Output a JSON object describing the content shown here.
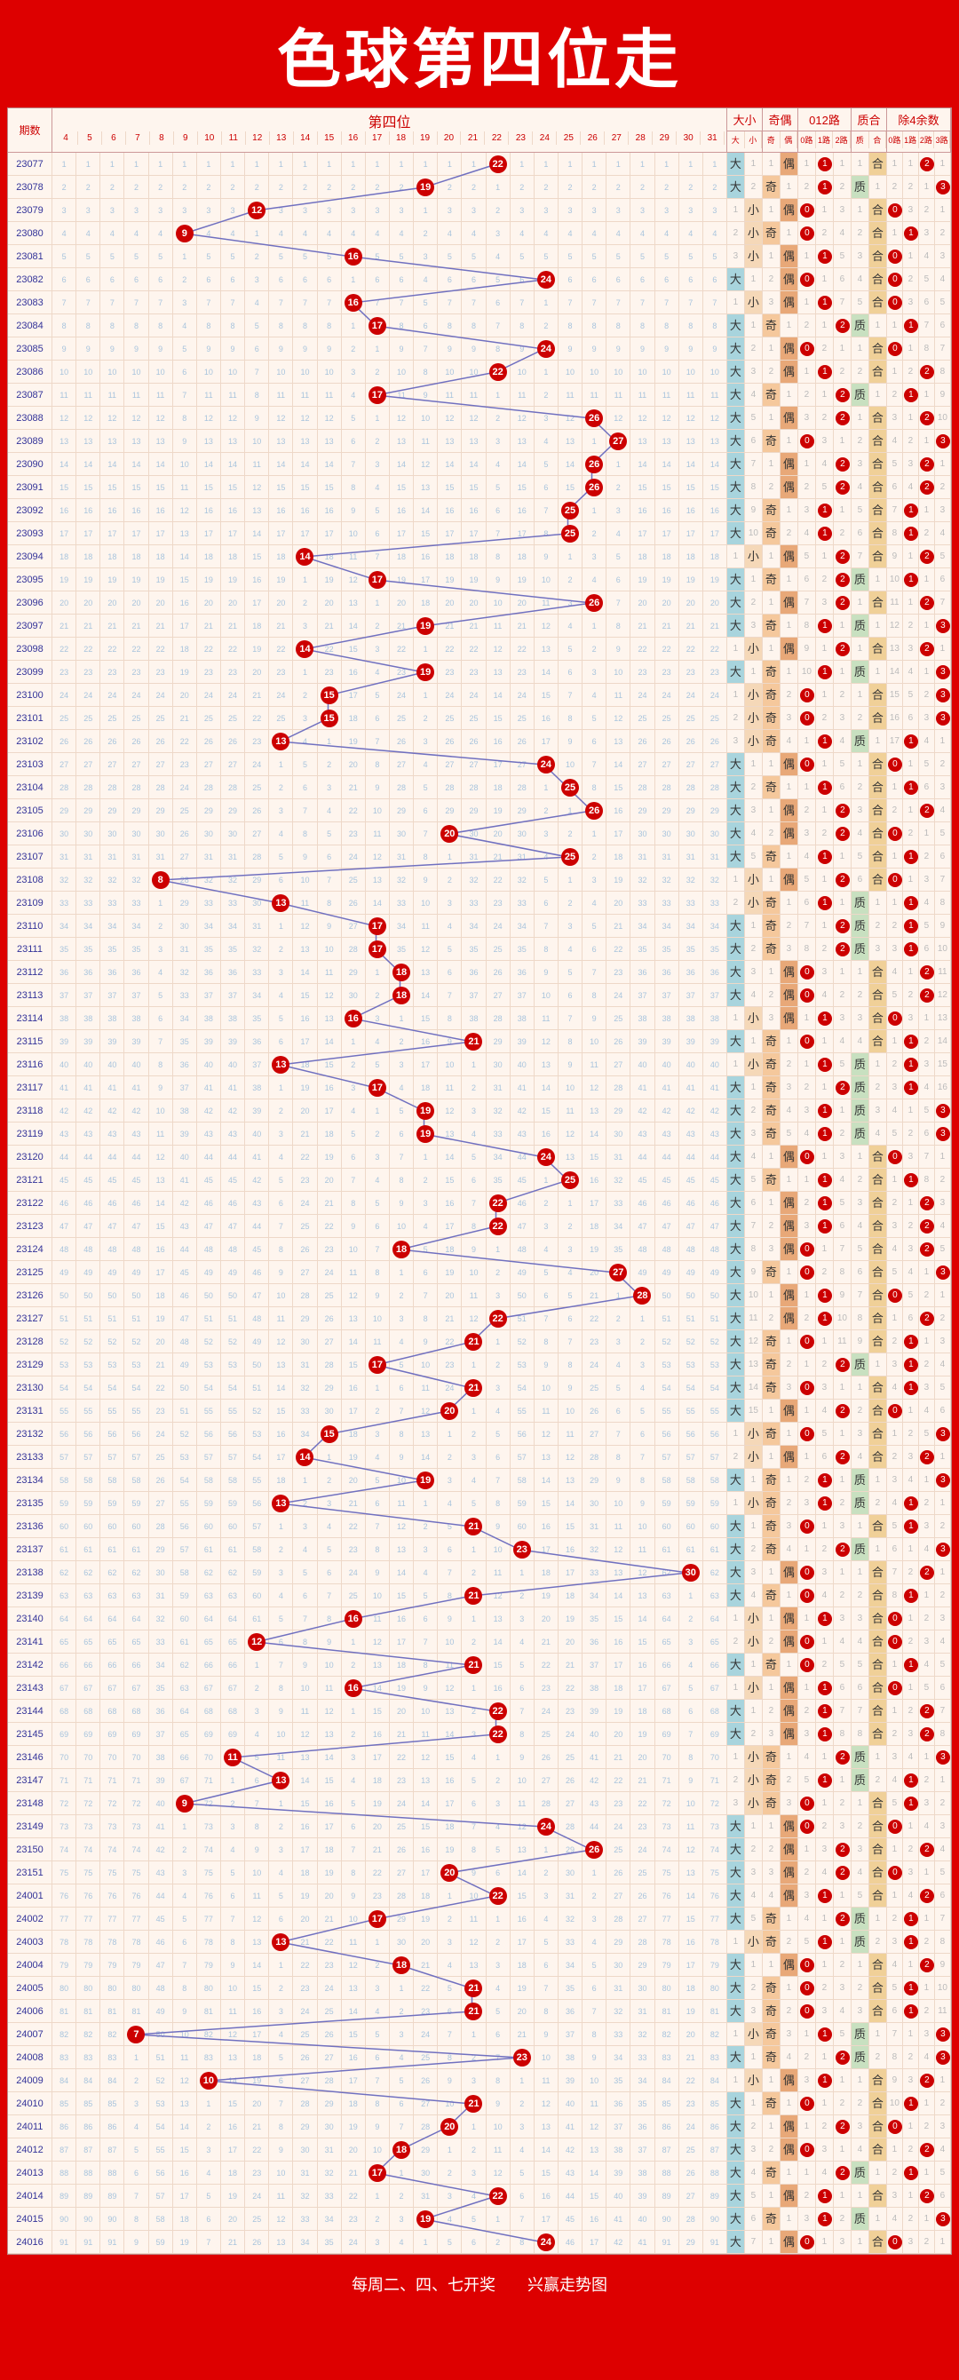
{
  "title": "色球第四位走",
  "header": {
    "period": "期数",
    "pos": "第四位",
    "dx": "大小",
    "qo": "奇偶",
    "r012": "012路",
    "zh": "质合",
    "r4": "除4余数",
    "dxSub": [
      "大",
      "小"
    ],
    "qoSub": [
      "奇",
      "偶"
    ],
    "r012Sub": [
      "0路",
      "1路",
      "2路"
    ],
    "zhSub": [
      "质",
      "合"
    ],
    "r4Sub": [
      "0路",
      "1路",
      "2路",
      "3路"
    ]
  },
  "footer": "每周二、四、七开奖　　兴赢走势图",
  "numRange": {
    "min": 4,
    "max": 31
  },
  "colors": {
    "ball": "#c00",
    "line": "#7070c0",
    "da": "#a8d4dd",
    "xi": "#f5d8b8",
    "qi": "#f5c89c",
    "ou": "#e8a878",
    "zhi": "#c8e0c0",
    "he": "#f0d098"
  },
  "rows": [
    {
      "p": "23077",
      "v": 22
    },
    {
      "p": "23078",
      "v": 19
    },
    {
      "p": "23079",
      "v": 12
    },
    {
      "p": "23080",
      "v": 9
    },
    {
      "p": "23081",
      "v": 16
    },
    {
      "p": "23082",
      "v": 24
    },
    {
      "p": "23083",
      "v": 16
    },
    {
      "p": "23084",
      "v": 17
    },
    {
      "p": "23085",
      "v": 24
    },
    {
      "p": "23086",
      "v": 22
    },
    {
      "p": "23087",
      "v": 17
    },
    {
      "p": "23088",
      "v": 26
    },
    {
      "p": "23089",
      "v": 27
    },
    {
      "p": "23090",
      "v": 26
    },
    {
      "p": "23091",
      "v": 26
    },
    {
      "p": "23092",
      "v": 25
    },
    {
      "p": "23093",
      "v": 25
    },
    {
      "p": "23094",
      "v": 14
    },
    {
      "p": "23095",
      "v": 17
    },
    {
      "p": "23096",
      "v": 26
    },
    {
      "p": "23097",
      "v": 19
    },
    {
      "p": "23098",
      "v": 14
    },
    {
      "p": "23099",
      "v": 19
    },
    {
      "p": "23100",
      "v": 15
    },
    {
      "p": "23101",
      "v": 15
    },
    {
      "p": "23102",
      "v": 13
    },
    {
      "p": "23103",
      "v": 24
    },
    {
      "p": "23104",
      "v": 25
    },
    {
      "p": "23105",
      "v": 26
    },
    {
      "p": "23106",
      "v": 20
    },
    {
      "p": "23107",
      "v": 25
    },
    {
      "p": "23108",
      "v": 8
    },
    {
      "p": "23109",
      "v": 13
    },
    {
      "p": "23110",
      "v": 17
    },
    {
      "p": "23111",
      "v": 17
    },
    {
      "p": "23112",
      "v": 18
    },
    {
      "p": "23113",
      "v": 18
    },
    {
      "p": "23114",
      "v": 16
    },
    {
      "p": "23115",
      "v": 21
    },
    {
      "p": "23116",
      "v": 13
    },
    {
      "p": "23117",
      "v": 17
    },
    {
      "p": "23118",
      "v": 19
    },
    {
      "p": "23119",
      "v": 19
    },
    {
      "p": "23120",
      "v": 24
    },
    {
      "p": "23121",
      "v": 25
    },
    {
      "p": "23122",
      "v": 22
    },
    {
      "p": "23123",
      "v": 22
    },
    {
      "p": "23124",
      "v": 18
    },
    {
      "p": "23125",
      "v": 27
    },
    {
      "p": "23126",
      "v": 28
    },
    {
      "p": "23127",
      "v": 22
    },
    {
      "p": "23128",
      "v": 21
    },
    {
      "p": "23129",
      "v": 17
    },
    {
      "p": "23130",
      "v": 21
    },
    {
      "p": "23131",
      "v": 20
    },
    {
      "p": "23132",
      "v": 15
    },
    {
      "p": "23133",
      "v": 14
    },
    {
      "p": "23134",
      "v": 19
    },
    {
      "p": "23135",
      "v": 13
    },
    {
      "p": "23136",
      "v": 21
    },
    {
      "p": "23137",
      "v": 23
    },
    {
      "p": "23138",
      "v": 30
    },
    {
      "p": "23139",
      "v": 21
    },
    {
      "p": "23140",
      "v": 16
    },
    {
      "p": "23141",
      "v": 12
    },
    {
      "p": "23142",
      "v": 21
    },
    {
      "p": "23143",
      "v": 16
    },
    {
      "p": "23144",
      "v": 22
    },
    {
      "p": "23145",
      "v": 22
    },
    {
      "p": "23146",
      "v": 11
    },
    {
      "p": "23147",
      "v": 13
    },
    {
      "p": "23148",
      "v": 9
    },
    {
      "p": "23149",
      "v": 24
    },
    {
      "p": "23150",
      "v": 26
    },
    {
      "p": "23151",
      "v": 20
    },
    {
      "p": "24001",
      "v": 22
    },
    {
      "p": "24002",
      "v": 17
    },
    {
      "p": "24003",
      "v": 13
    },
    {
      "p": "24004",
      "v": 18
    },
    {
      "p": "24005",
      "v": 21
    },
    {
      "p": "24006",
      "v": 21
    },
    {
      "p": "24007",
      "v": 7
    },
    {
      "p": "24008",
      "v": 23
    },
    {
      "p": "24009",
      "v": 10
    },
    {
      "p": "24010",
      "v": 21
    },
    {
      "p": "24011",
      "v": 20
    },
    {
      "p": "24012",
      "v": 18
    },
    {
      "p": "24013",
      "v": 17
    },
    {
      "p": "24014",
      "v": 22
    },
    {
      "p": "24015",
      "v": 19
    },
    {
      "p": "24016",
      "v": 24
    }
  ]
}
